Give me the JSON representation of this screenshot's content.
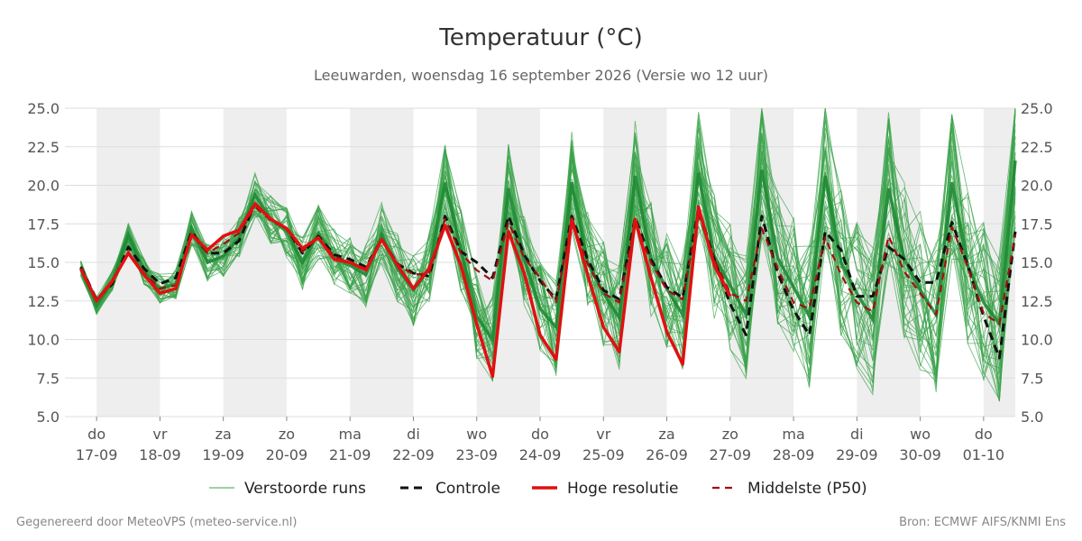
{
  "title": "Temperatuur (°C)",
  "subtitle": "Leeuwarden, woensdag 16 september 2026 (Versie wo 12 uur)",
  "footer_left": "Gegenereerd door MeteoVPS (meteo-service.nl)",
  "footer_right": "Bron: ECMWF AIFS/KNMI Ens",
  "colors": {
    "ensemble": "#3aa34a",
    "ensemble_band": "#1f8a34",
    "control": "#111111",
    "hires": "#e01010",
    "median": "#a01010",
    "weekend_shade": "#eeeeee",
    "grid": "#dddddd"
  },
  "chart_data": {
    "type": "line",
    "x_unit": "hours since 17-09 00:00",
    "xlim": [
      -12,
      348
    ],
    "ylim": [
      5.0,
      25.0
    ],
    "y_ticks": [
      "5.0",
      "7.5",
      "10.0",
      "12.5",
      "15.0",
      "17.5",
      "20.0",
      "22.5",
      "25.0"
    ],
    "y_tick_values": [
      5.0,
      7.5,
      10.0,
      12.5,
      15.0,
      17.5,
      20.0,
      22.5,
      25.0
    ],
    "x_ticks": [
      {
        "day": "do",
        "date": "17-09",
        "x": 0
      },
      {
        "day": "vr",
        "date": "18-09",
        "x": 24
      },
      {
        "day": "za",
        "date": "19-09",
        "x": 48
      },
      {
        "day": "zo",
        "date": "20-09",
        "x": 72
      },
      {
        "day": "ma",
        "date": "21-09",
        "x": 96
      },
      {
        "day": "di",
        "date": "22-09",
        "x": 120
      },
      {
        "day": "wo",
        "date": "23-09",
        "x": 144
      },
      {
        "day": "do",
        "date": "24-09",
        "x": 168
      },
      {
        "day": "vr",
        "date": "25-09",
        "x": 192
      },
      {
        "day": "za",
        "date": "26-09",
        "x": 216
      },
      {
        "day": "zo",
        "date": "27-09",
        "x": 240
      },
      {
        "day": "ma",
        "date": "28-09",
        "x": 264
      },
      {
        "day": "di",
        "date": "29-09",
        "x": 288
      },
      {
        "day": "wo",
        "date": "30-09",
        "x": 312
      },
      {
        "day": "do",
        "date": "01-10",
        "x": 336
      }
    ],
    "shaded_days": [
      [
        0,
        24
      ],
      [
        48,
        72
      ],
      [
        96,
        120
      ],
      [
        144,
        168
      ],
      [
        192,
        216
      ],
      [
        240,
        264
      ],
      [
        288,
        312
      ],
      [
        336,
        348
      ]
    ],
    "series": [
      {
        "name": "Verstoorde runs",
        "style": "thin-ensemble",
        "x": [
          -6,
          0,
          6,
          12,
          18,
          24,
          30,
          36,
          42,
          48,
          54,
          60,
          66,
          72,
          78,
          84,
          90,
          96,
          102,
          108,
          114,
          120,
          126,
          132,
          138,
          144,
          150,
          156,
          162,
          168,
          174,
          180,
          186,
          192,
          198,
          204,
          210,
          216,
          222,
          228,
          234,
          240,
          246,
          252,
          258,
          264,
          270,
          276,
          282,
          288,
          294,
          300,
          306,
          312,
          318,
          324,
          330,
          336,
          342,
          348
        ],
        "values": [
          14.6,
          12.2,
          13.8,
          16.8,
          14.4,
          13.3,
          13.6,
          17.2,
          15.0,
          15.4,
          16.6,
          19.4,
          17.8,
          17.0,
          15.0,
          16.9,
          15.3,
          14.8,
          14.2,
          16.8,
          14.6,
          13.2,
          14.6,
          20.2,
          15.8,
          11.5,
          10.0,
          19.8,
          15.2,
          12.0,
          10.8,
          20.2,
          15.0,
          13.0,
          11.4,
          20.6,
          15.2,
          13.3,
          11.6,
          20.8,
          15.4,
          13.5,
          11.6,
          21.0,
          15.3,
          13.4,
          11.5,
          20.6,
          15.0,
          13.0,
          11.3,
          19.8,
          15.2,
          13.2,
          11.6,
          20.2,
          14.8,
          12.4,
          11.0,
          21.6
        ]
      },
      {
        "name": "Controle",
        "style": "dashed-black",
        "x": [
          -6,
          0,
          6,
          12,
          18,
          24,
          30,
          36,
          42,
          48,
          54,
          60,
          66,
          72,
          78,
          84,
          90,
          96,
          102,
          108,
          114,
          120,
          126,
          132,
          138,
          144,
          150,
          156,
          162,
          168,
          174,
          180,
          186,
          192,
          198,
          204,
          210,
          216,
          222,
          228,
          234,
          240,
          246,
          252,
          258,
          264,
          270,
          276,
          282,
          288,
          294,
          300,
          306,
          312,
          318,
          324,
          330,
          336,
          342,
          348
        ],
        "values": [
          14.7,
          12.6,
          13.6,
          16.0,
          14.6,
          13.6,
          14.0,
          17.0,
          15.6,
          15.6,
          16.4,
          18.8,
          17.8,
          17.2,
          15.6,
          16.7,
          15.5,
          15.2,
          14.7,
          16.5,
          14.9,
          14.3,
          14.1,
          18.0,
          15.7,
          15.0,
          14.0,
          18.0,
          15.5,
          13.8,
          12.6,
          18.0,
          15.2,
          13.2,
          12.6,
          17.9,
          15.2,
          13.4,
          12.7,
          18.5,
          15.2,
          12.3,
          10.3,
          18.0,
          14.3,
          11.9,
          10.3,
          17.0,
          15.8,
          12.8,
          12.8,
          16.0,
          15.2,
          13.7,
          13.7,
          17.6,
          14.8,
          11.5,
          8.8,
          17.0
        ]
      },
      {
        "name": "Hoge resolutie",
        "style": "thick-red",
        "x": [
          -6,
          0,
          6,
          12,
          18,
          24,
          30,
          36,
          42,
          48,
          54,
          60,
          66,
          72,
          78,
          84,
          90,
          96,
          102,
          108,
          114,
          120,
          126,
          132,
          138,
          144,
          150,
          156,
          162,
          168,
          174,
          180,
          186,
          192,
          198,
          204,
          210,
          216,
          222,
          228,
          234,
          240
        ],
        "values": [
          14.6,
          12.5,
          13.8,
          15.6,
          14.2,
          13.0,
          13.3,
          16.8,
          15.8,
          16.7,
          17.1,
          18.8,
          17.8,
          17.2,
          15.9,
          16.6,
          15.2,
          15.0,
          14.5,
          16.5,
          14.8,
          13.3,
          14.6,
          17.4,
          14.8,
          11.0,
          7.6,
          17.0,
          14.3,
          10.3,
          8.7,
          17.8,
          14.2,
          10.8,
          9.2,
          17.8,
          14.0,
          10.5,
          8.4,
          18.6,
          14.8,
          12.8
        ]
      },
      {
        "name": "Middelste (P50)",
        "style": "dashed-darkred",
        "x": [
          -6,
          0,
          6,
          12,
          18,
          24,
          30,
          36,
          42,
          48,
          54,
          60,
          66,
          72,
          78,
          84,
          90,
          96,
          102,
          108,
          114,
          120,
          126,
          132,
          138,
          144,
          150,
          156,
          162,
          168,
          174,
          180,
          186,
          192,
          198,
          204,
          210,
          216,
          222,
          228,
          234,
          240,
          246,
          252,
          258,
          264,
          270,
          276,
          282,
          288,
          294,
          300,
          306,
          312,
          318,
          324,
          330,
          336,
          342,
          348
        ],
        "values": [
          14.5,
          12.6,
          13.7,
          15.7,
          14.3,
          13.3,
          13.5,
          16.8,
          15.6,
          16.2,
          16.9,
          18.6,
          17.7,
          17.2,
          15.7,
          16.6,
          15.4,
          15.0,
          14.6,
          16.4,
          14.9,
          14.2,
          14.3,
          17.8,
          15.6,
          14.5,
          13.8,
          17.6,
          15.3,
          14.0,
          12.4,
          17.7,
          14.9,
          13.0,
          12.4,
          17.6,
          15.0,
          13.2,
          12.6,
          18.1,
          15.2,
          13.0,
          12.5,
          17.2,
          14.6,
          12.4,
          12.0,
          16.6,
          14.2,
          12.4,
          11.8,
          16.7,
          14.4,
          13.0,
          11.6,
          17.3,
          14.7,
          11.7,
          11.0,
          16.8
        ]
      }
    ],
    "legend_position": "bottom-center",
    "grid": true
  }
}
